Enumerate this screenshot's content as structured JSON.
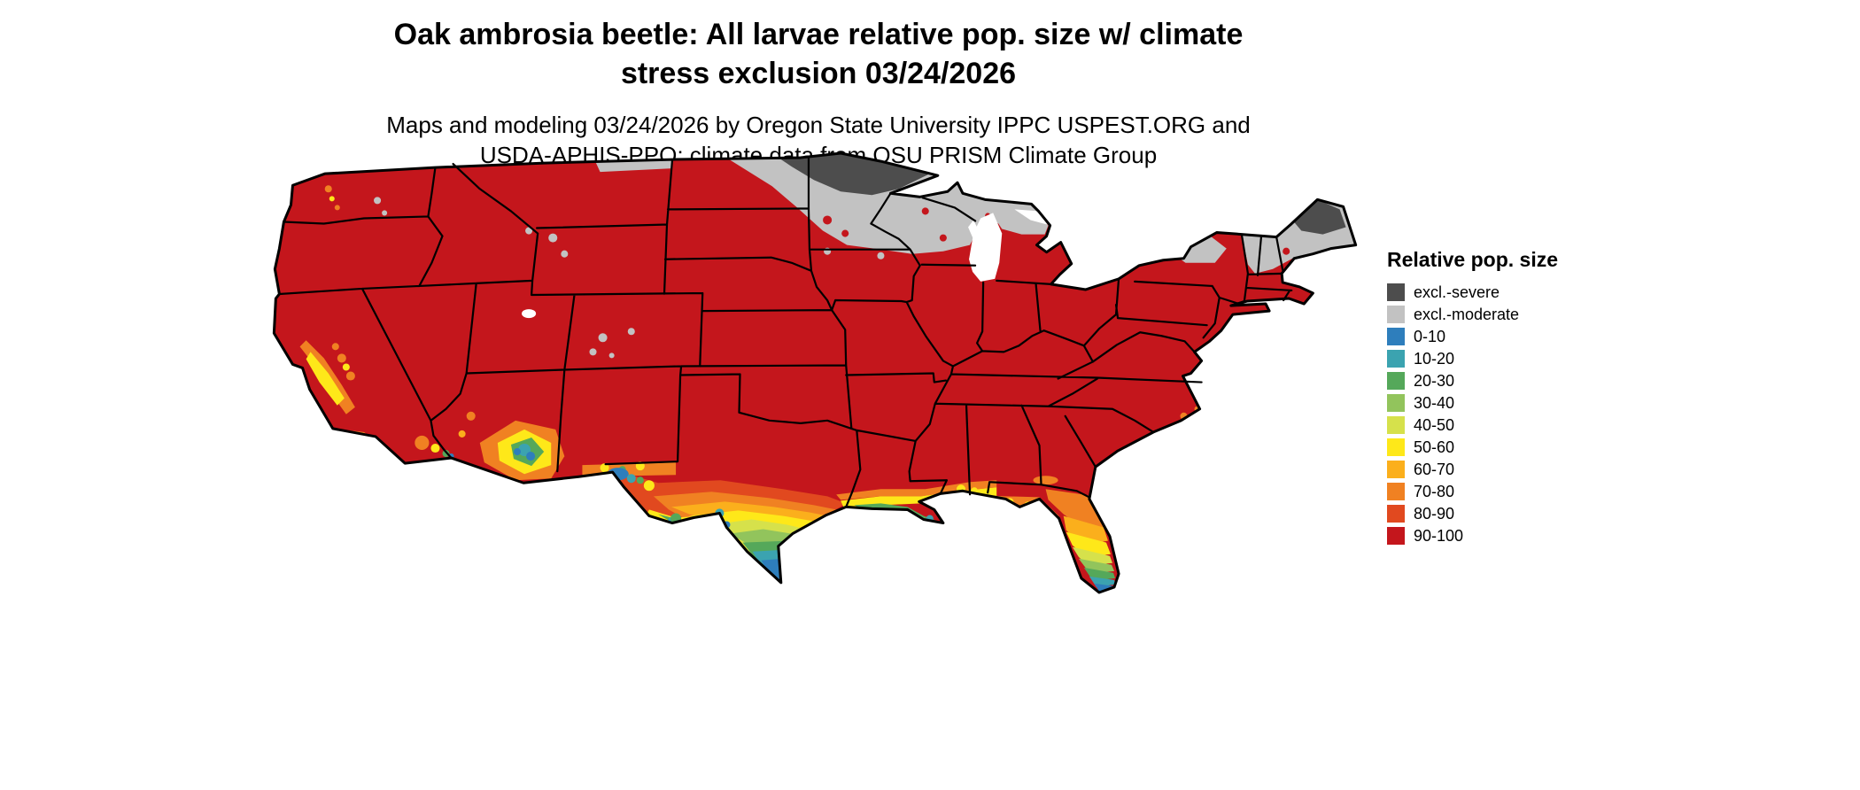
{
  "title": {
    "line1": "Oak ambrosia beetle: All larvae relative pop. size w/ climate",
    "line2": "stress exclusion 03/24/2026"
  },
  "subtitle": {
    "line1": "Maps and modeling 03/24/2026 by Oregon State University IPPC USPEST.ORG and",
    "line2": "USDA-APHIS-PPQ; climate data from OSU PRISM Climate Group"
  },
  "legend": {
    "title": "Relative pop. size",
    "items": [
      {
        "label": "excl.-severe",
        "color": "#4d4d4d"
      },
      {
        "label": "excl.-moderate",
        "color": "#c2c2c2"
      },
      {
        "label": "0-10",
        "color": "#2e7ebc"
      },
      {
        "label": "10-20",
        "color": "#3ba3b0"
      },
      {
        "label": "20-30",
        "color": "#55a85a"
      },
      {
        "label": "30-40",
        "color": "#92c45c"
      },
      {
        "label": "40-50",
        "color": "#d6e14b"
      },
      {
        "label": "50-60",
        "color": "#fee819"
      },
      {
        "label": "60-70",
        "color": "#fbaf1c"
      },
      {
        "label": "70-80",
        "color": "#f08122"
      },
      {
        "label": "80-90",
        "color": "#e1491f"
      },
      {
        "label": "90-100",
        "color": "#c4161c"
      }
    ]
  },
  "map": {
    "background": "#ffffff",
    "border_color": "#000000",
    "base_value_label": "90-100"
  }
}
